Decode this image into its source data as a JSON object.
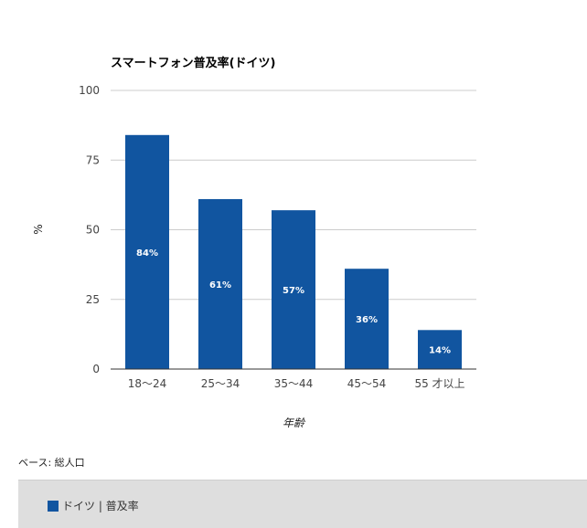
{
  "chart_data": {
    "type": "bar",
    "title": "スマートフォン普及率(ドイツ)",
    "xlabel": "年齢",
    "ylabel": "%",
    "categories": [
      "18〜24",
      "25〜34",
      "35〜44",
      "45〜54",
      "55 才以上"
    ],
    "series": [
      {
        "name": "ドイツ | 普及率",
        "values": [
          84,
          61,
          57,
          36,
          14
        ],
        "data_labels": [
          "84%",
          "61%",
          "57%",
          "36%",
          "14%"
        ],
        "color": "#1155a0"
      }
    ],
    "ylim": [
      0,
      100
    ],
    "yticks": [
      0,
      25,
      50,
      75,
      100
    ],
    "ytick_labels": [
      "0",
      "25",
      "50",
      "75",
      "100"
    ],
    "grid": true,
    "legend_position": "bottom"
  },
  "footnote": "ベース: 総人口",
  "legend": {
    "label": "ドイツ | 普及率",
    "color": "#1155a0"
  }
}
